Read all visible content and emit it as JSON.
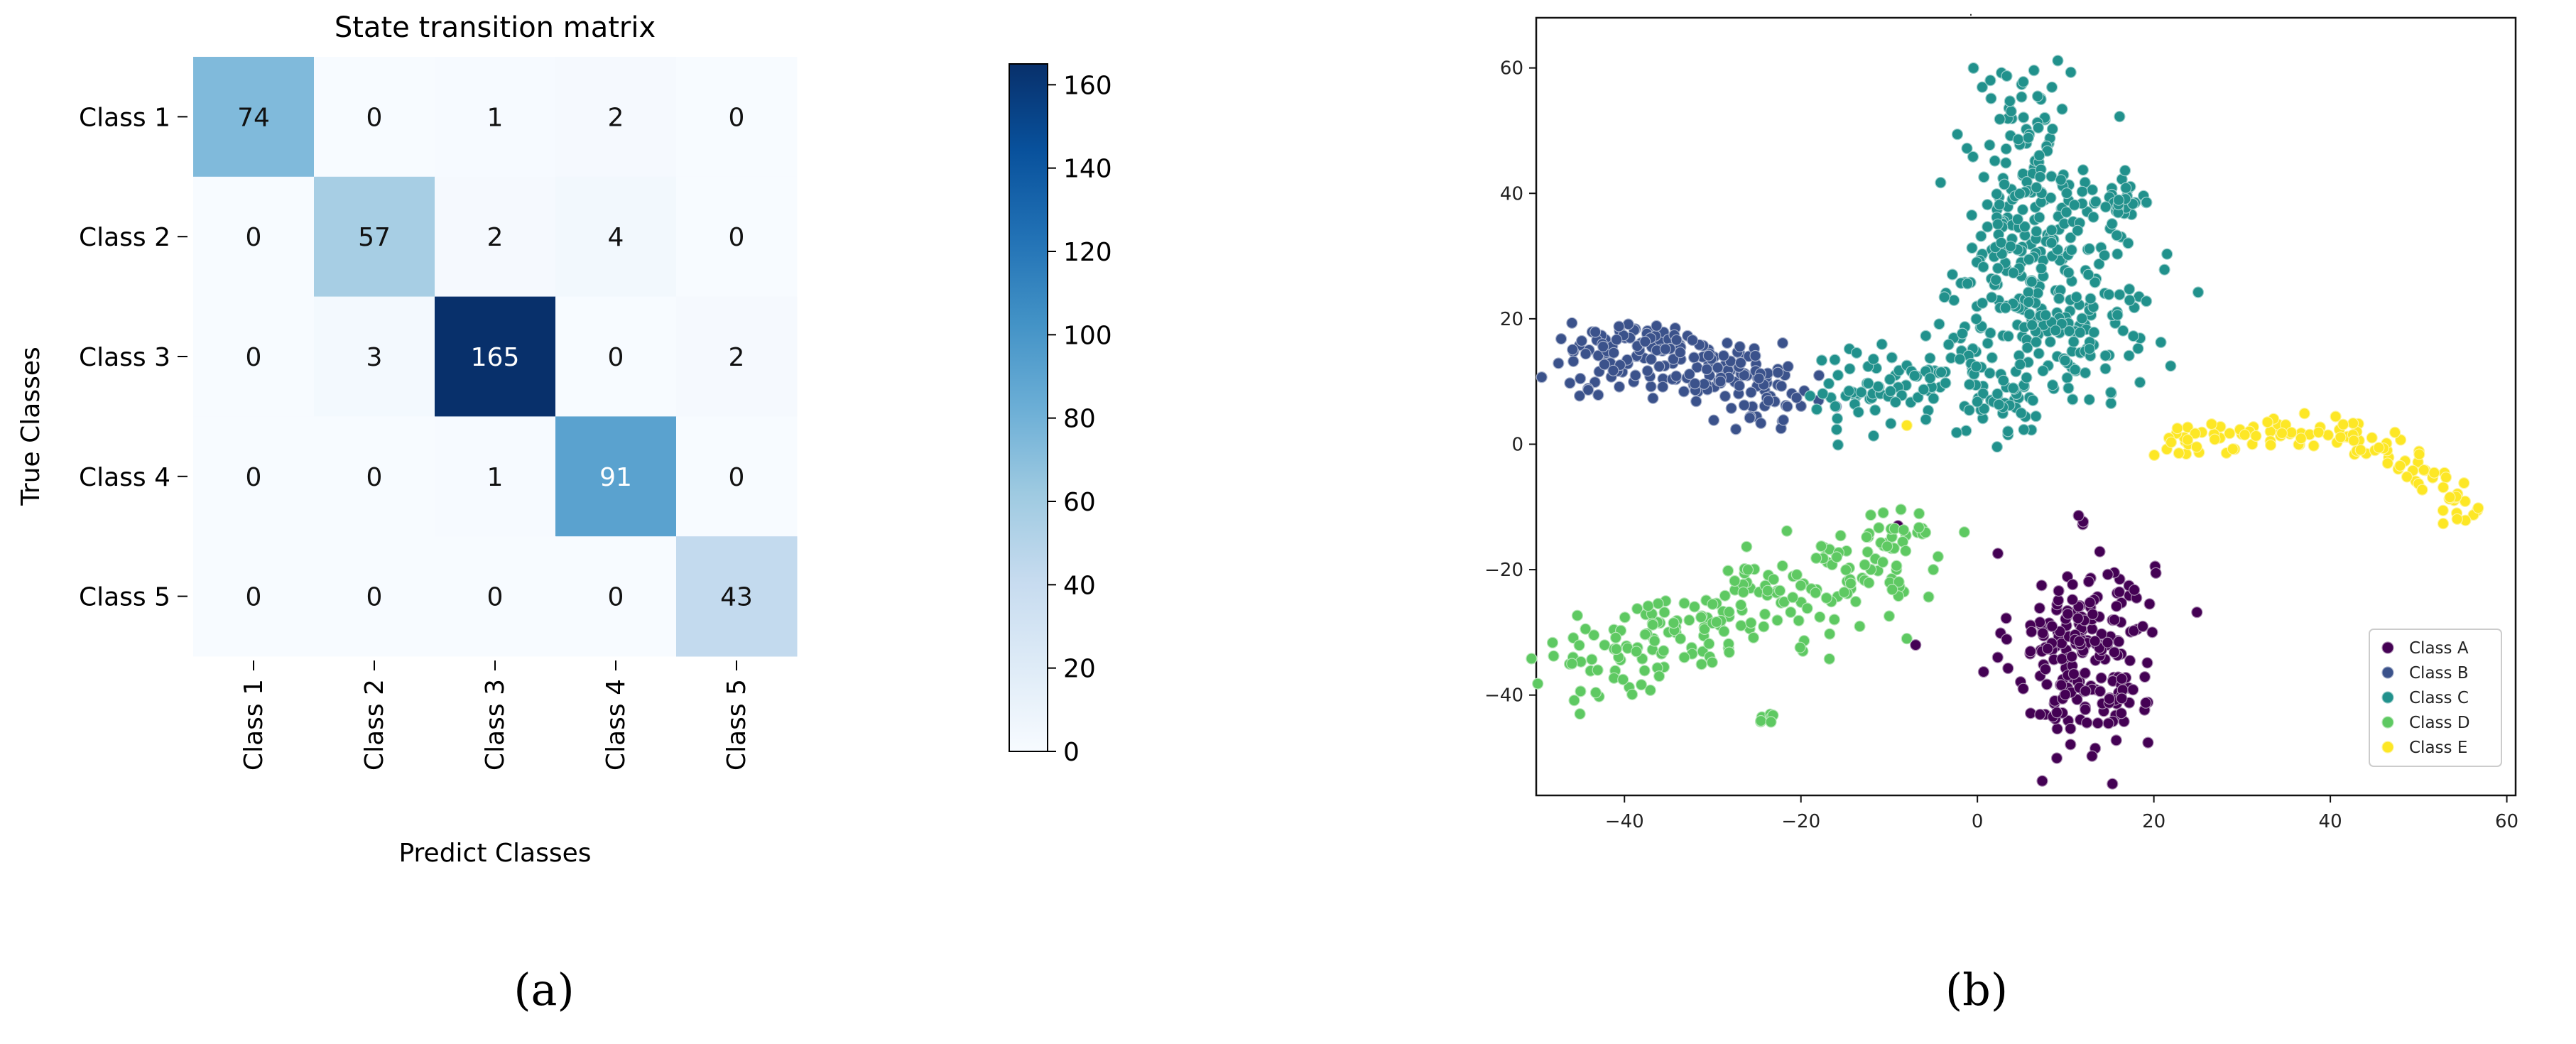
{
  "chart_data": [
    {
      "type": "heatmap",
      "title": "State transition matrix",
      "xlabel": "Predict Classes",
      "ylabel": "True Classes",
      "x_categories": [
        "Class 1",
        "Class 2",
        "Class 3",
        "Class 4",
        "Class 5"
      ],
      "y_categories": [
        "Class 1",
        "Class 2",
        "Class 3",
        "Class 4",
        "Class 5"
      ],
      "values": [
        [
          74,
          0,
          1,
          2,
          0
        ],
        [
          0,
          57,
          2,
          4,
          0
        ],
        [
          0,
          3,
          165,
          0,
          2
        ],
        [
          0,
          0,
          1,
          91,
          0
        ],
        [
          0,
          0,
          0,
          0,
          43
        ]
      ],
      "colormap": "Blues",
      "colorbar": {
        "range": [
          0,
          165
        ],
        "ticks": [
          0,
          20,
          40,
          60,
          80,
          100,
          120,
          140,
          160
        ]
      },
      "caption": "(a)"
    },
    {
      "type": "scatter",
      "title": ".",
      "xlim": [
        -50,
        61
      ],
      "ylim": [
        -56,
        68
      ],
      "xticks": [
        -40,
        -20,
        0,
        20,
        40,
        60
      ],
      "yticks": [
        -40,
        -20,
        0,
        20,
        40,
        60
      ],
      "legend_position": "bottom-right",
      "grid": false,
      "caption": "(b)",
      "series": [
        {
          "name": "Class A",
          "color": "#440154",
          "clusters": [
            {
              "shape": "blob",
              "center": [
                12,
                -33
              ],
              "spread": [
                4.0,
                8.0
              ],
              "count": 220
            }
          ],
          "extra_points": [
            [
              -7,
              -32
            ],
            [
              -9,
              -13
            ]
          ]
        },
        {
          "name": "Class B",
          "color": "#3b528b",
          "clusters": [
            {
              "shape": "path",
              "path": [
                [
                  -45,
                  13
                ],
                [
                  -38,
                  15
                ],
                [
                  -32,
                  13
                ],
                [
                  -26,
                  10
                ],
                [
                  -21,
                  6
                ]
              ],
              "width": 3.0,
              "count": 200
            }
          ],
          "extra_points": [
            [
              -18,
              7
            ],
            [
              -16,
              6
            ]
          ]
        },
        {
          "name": "Class C",
          "color": "#21918c",
          "clusters": [
            {
              "shape": "blob",
              "center": [
                6,
                42
              ],
              "spread": [
                3.5,
                10.0
              ],
              "count": 150
            },
            {
              "shape": "blob",
              "center": [
                8,
                22
              ],
              "spread": [
                6.0,
                8.0
              ],
              "count": 230
            },
            {
              "shape": "blob",
              "center": [
                16,
                38
              ],
              "spread": [
                2.0,
                2.0
              ],
              "count": 30
            },
            {
              "shape": "path",
              "path": [
                [
                  -17,
                  7
                ],
                [
                  -12,
                  11
                ],
                [
                  -6,
                  10
                ],
                [
                  0,
                  8
                ],
                [
                  5,
                  4
                ]
              ],
              "width": 3.0,
              "count": 110
            }
          ],
          "extra_points": []
        },
        {
          "name": "Class D",
          "color": "#5ec962",
          "clusters": [
            {
              "shape": "path",
              "path": [
                [
                  -46,
                  -36
                ],
                [
                  -38,
                  -33
                ],
                [
                  -31,
                  -28
                ],
                [
                  -24,
                  -25
                ],
                [
                  -16,
                  -23
                ],
                [
                  -10,
                  -18
                ],
                [
                  -8,
                  -14
                ]
              ],
              "width": 4.0,
              "count": 230
            },
            {
              "shape": "blob",
              "center": [
                -24,
                -44
              ],
              "spread": [
                0.8,
                0.6
              ],
              "count": 8
            }
          ],
          "extra_points": [
            [
              -8,
              -31
            ],
            [
              -5,
              -20
            ]
          ]
        },
        {
          "name": "Class E",
          "color": "#fde725",
          "clusters": [
            {
              "shape": "path",
              "path": [
                [
                  21,
                  0
                ],
                [
                  30,
                  1
                ],
                [
                  38,
                  2
                ],
                [
                  45,
                  0
                ],
                [
                  52,
                  -6
                ],
                [
                  56,
                  -12
                ]
              ],
              "width": 1.5,
              "count": 120
            }
          ],
          "extra_points": [
            [
              -8,
              3
            ]
          ]
        }
      ]
    }
  ]
}
